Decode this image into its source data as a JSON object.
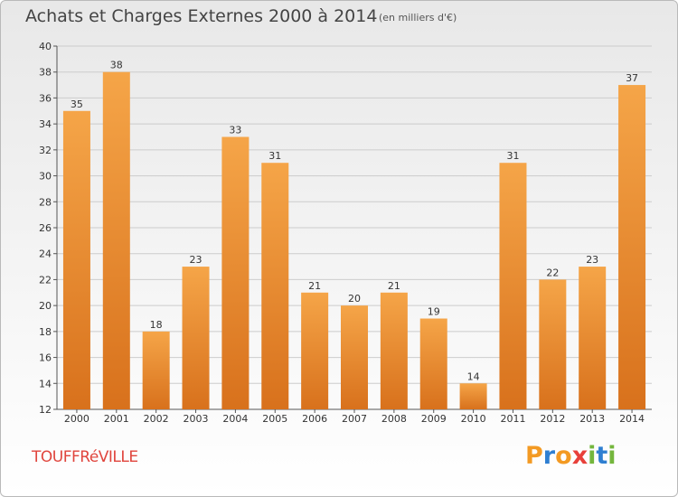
{
  "title": "Achats et Charges Externes 2000 à 2014",
  "subtitle": "(en milliers d'€)",
  "commune": "TOUFFRéVILLE",
  "logo": {
    "letters": [
      "P",
      "r",
      "o",
      "x",
      "i",
      "t",
      "i"
    ],
    "colors": [
      "#f39a23",
      "#2f7fd1",
      "#f39a23",
      "#e8403a",
      "#74b63d",
      "#2f7fd1",
      "#74b63d"
    ]
  },
  "colors": {
    "bar_light": "#f5a548",
    "bar_dark": "#d8711c",
    "grid": "#cccccc"
  },
  "chart_data": {
    "type": "bar",
    "title": "Achats et Charges Externes 2000 à 2014",
    "ylabel": "en milliers d'€",
    "categories": [
      "2000",
      "2001",
      "2002",
      "2003",
      "2004",
      "2005",
      "2006",
      "2007",
      "2008",
      "2009",
      "2010",
      "2011",
      "2012",
      "2013",
      "2014"
    ],
    "values": [
      35,
      38,
      18,
      23,
      33,
      31,
      21,
      20,
      21,
      19,
      14,
      31,
      22,
      23,
      37
    ],
    "ylim": [
      12,
      40
    ],
    "yticks": [
      12,
      14,
      16,
      18,
      20,
      22,
      24,
      26,
      28,
      30,
      32,
      34,
      36,
      38,
      40
    ],
    "grid": true
  }
}
